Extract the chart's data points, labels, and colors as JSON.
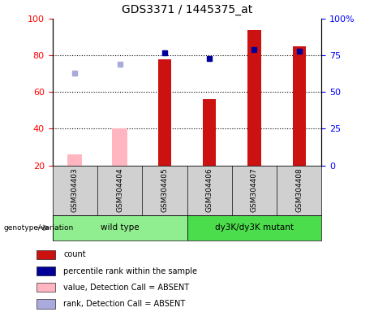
{
  "title": "GDS3371 / 1445375_at",
  "samples": [
    "GSM304403",
    "GSM304404",
    "GSM304405",
    "GSM304406",
    "GSM304407",
    "GSM304408"
  ],
  "red_bars": [
    null,
    null,
    78,
    56,
    94,
    85
  ],
  "pink_bars": [
    26,
    40,
    null,
    null,
    null,
    null
  ],
  "blue_squares": [
    null,
    null,
    77,
    73,
    79,
    78
  ],
  "lightblue_squares": [
    63,
    69,
    null,
    null,
    null,
    null
  ],
  "ylim_left": [
    20,
    100
  ],
  "ylim_right": [
    0,
    100
  ],
  "yticks_left": [
    20,
    40,
    60,
    80,
    100
  ],
  "yticks_right": [
    0,
    25,
    50,
    75,
    100
  ],
  "ytick_labels_right": [
    "0",
    "25",
    "50",
    "75",
    "100%"
  ],
  "group_label": "genotype/variation",
  "groups": [
    {
      "label": "wild type",
      "xmin": -0.5,
      "xmax": 2.5,
      "color": "#90EE90"
    },
    {
      "label": "dy3K/dy3K mutant",
      "xmin": 2.5,
      "xmax": 5.5,
      "color": "#4CDD4C"
    }
  ],
  "red_bar_color": "#CC1111",
  "pink_bar_color": "#FFB6C1",
  "blue_sq_color": "#000099",
  "lightblue_sq_color": "#AAAADD",
  "label_area_color": "#D0D0D0",
  "grid_lines": [
    40,
    60,
    80
  ],
  "legend_items": [
    {
      "color": "#CC1111",
      "label": "count"
    },
    {
      "color": "#000099",
      "label": "percentile rank within the sample"
    },
    {
      "color": "#FFB6C1",
      "label": "value, Detection Call = ABSENT"
    },
    {
      "color": "#AAAADD",
      "label": "rank, Detection Call = ABSENT"
    }
  ]
}
